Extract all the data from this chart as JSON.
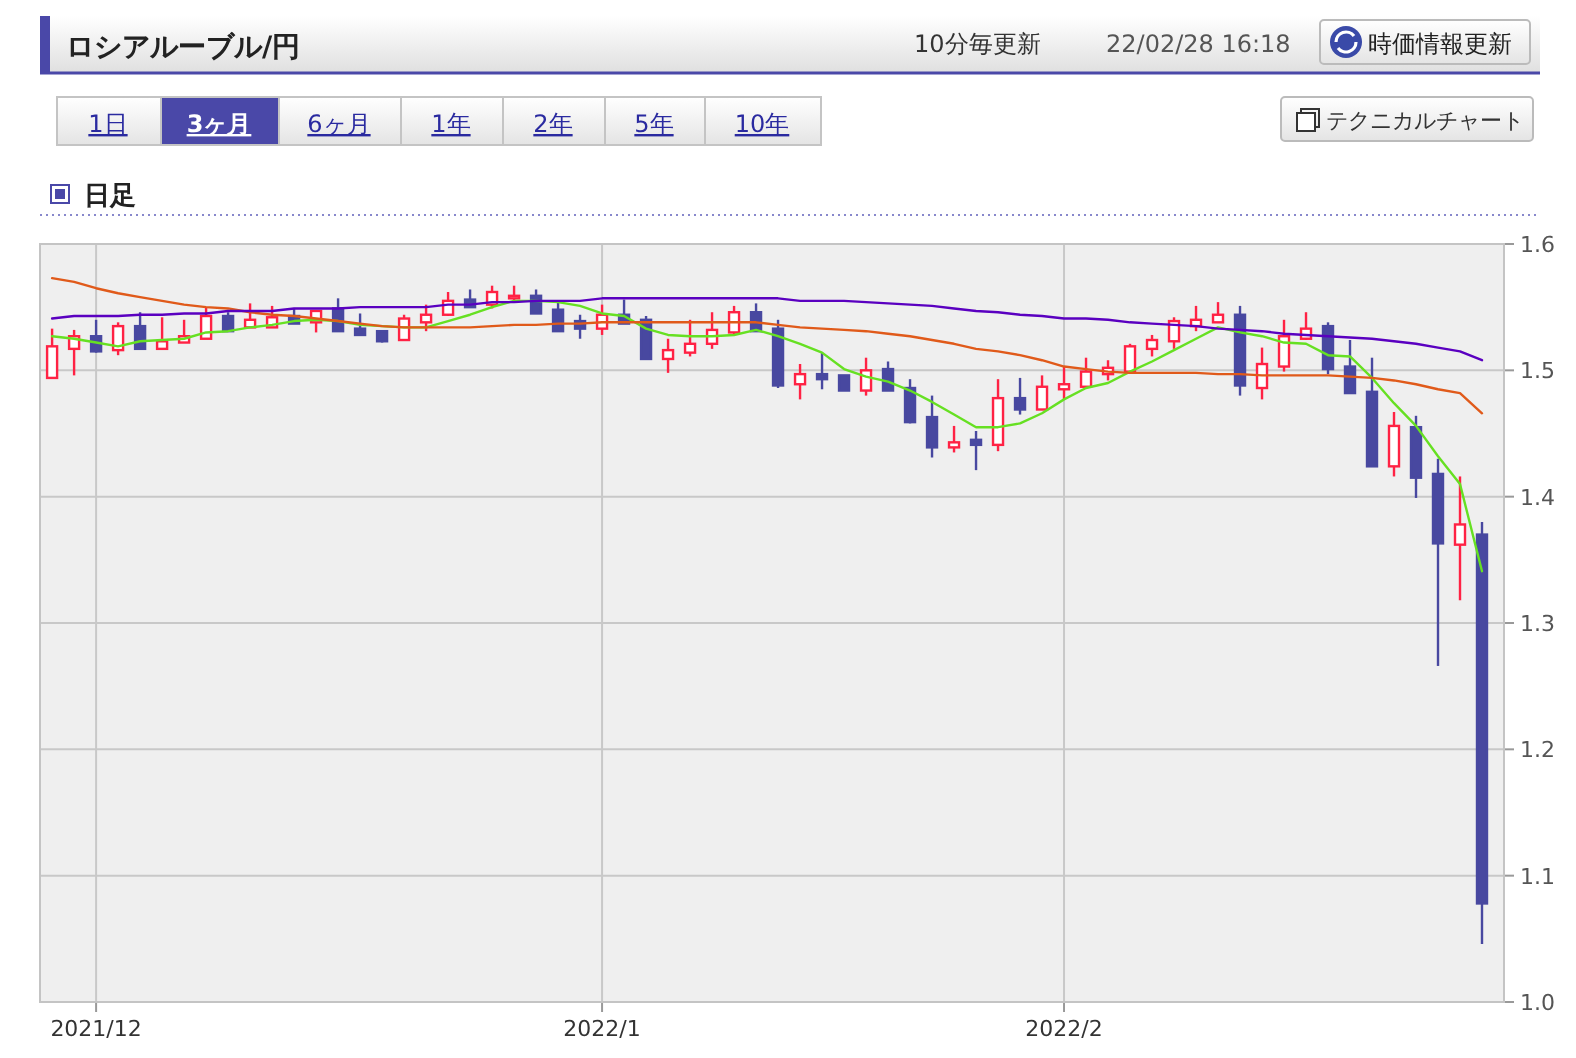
{
  "chart_data": {
    "type": "candlestick",
    "title": "ロシアルーブル/円",
    "subtitle": "日足",
    "annotations": [
      "10分毎更新",
      "22/02/28 16:18",
      "時価情報更新",
      "1日",
      "3ヶ月",
      "6ヶ月",
      "1年",
      "2年",
      "5年",
      "10年",
      "テクニカルチャート"
    ],
    "categories": [
      null,
      null,
      "2021/12",
      null,
      null,
      null,
      null,
      null,
      null,
      null,
      null,
      null,
      null,
      null,
      null,
      null,
      null,
      null,
      null,
      null,
      null,
      null,
      null,
      null,
      null,
      "2022/1",
      null,
      null,
      null,
      null,
      null,
      null,
      null,
      null,
      null,
      null,
      null,
      null,
      null,
      null,
      null,
      null,
      null,
      null,
      null,
      null,
      "2022/2",
      null,
      null,
      null,
      null,
      null,
      null,
      null,
      null,
      null,
      null,
      null,
      null,
      null,
      null,
      null,
      null,
      null,
      null,
      null
    ],
    "ohlc": [
      [
        1.494,
        1.533,
        1.494,
        1.519
      ],
      [
        1.517,
        1.532,
        1.496,
        1.527
      ],
      [
        1.527,
        1.54,
        1.514,
        1.515
      ],
      [
        1.516,
        1.538,
        1.512,
        1.535
      ],
      [
        1.535,
        1.546,
        1.517,
        1.517
      ],
      [
        1.517,
        1.542,
        1.517,
        1.523
      ],
      [
        1.522,
        1.54,
        1.522,
        1.527
      ],
      [
        1.525,
        1.55,
        1.525,
        1.543
      ],
      [
        1.543,
        1.546,
        1.531,
        1.531
      ],
      [
        1.534,
        1.553,
        1.534,
        1.54
      ],
      [
        1.534,
        1.551,
        1.534,
        1.542
      ],
      [
        1.543,
        1.549,
        1.537,
        1.537
      ],
      [
        1.538,
        1.547,
        1.53,
        1.547
      ],
      [
        1.549,
        1.557,
        1.531,
        1.531
      ],
      [
        1.533,
        1.545,
        1.528,
        1.528
      ],
      [
        1.531,
        1.531,
        1.522,
        1.523
      ],
      [
        1.524,
        1.544,
        1.524,
        1.541
      ],
      [
        1.538,
        1.552,
        1.531,
        1.544
      ],
      [
        1.544,
        1.562,
        1.543,
        1.555
      ],
      [
        1.556,
        1.564,
        1.55,
        1.55
      ],
      [
        1.552,
        1.567,
        1.549,
        1.562
      ],
      [
        1.557,
        1.567,
        1.555,
        1.559
      ],
      [
        1.559,
        1.564,
        1.545,
        1.545
      ],
      [
        1.548,
        1.555,
        1.531,
        1.531
      ],
      [
        1.539,
        1.544,
        1.525,
        1.533
      ],
      [
        1.533,
        1.552,
        1.528,
        1.544
      ],
      [
        1.544,
        1.556,
        1.537,
        1.537
      ],
      [
        1.54,
        1.543,
        1.509,
        1.509
      ],
      [
        1.509,
        1.525,
        1.498,
        1.516
      ],
      [
        1.514,
        1.54,
        1.511,
        1.521
      ],
      [
        1.521,
        1.546,
        1.517,
        1.532
      ],
      [
        1.53,
        1.551,
        1.528,
        1.546
      ],
      [
        1.546,
        1.553,
        1.531,
        1.531
      ],
      [
        1.533,
        1.54,
        1.486,
        1.488
      ],
      [
        1.489,
        1.505,
        1.477,
        1.497
      ],
      [
        1.497,
        1.514,
        1.485,
        1.493
      ],
      [
        1.496,
        1.496,
        1.484,
        1.484
      ],
      [
        1.484,
        1.51,
        1.48,
        1.5
      ],
      [
        1.501,
        1.507,
        1.484,
        1.484
      ],
      [
        1.486,
        1.493,
        1.458,
        1.459
      ],
      [
        1.463,
        1.48,
        1.431,
        1.439
      ],
      [
        1.439,
        1.456,
        1.435,
        1.443
      ],
      [
        1.445,
        1.452,
        1.421,
        1.441
      ],
      [
        1.441,
        1.493,
        1.436,
        1.478
      ],
      [
        1.478,
        1.494,
        1.465,
        1.469
      ],
      [
        1.469,
        1.496,
        1.469,
        1.487
      ],
      [
        1.485,
        1.503,
        1.477,
        1.489
      ],
      [
        1.487,
        1.51,
        1.487,
        1.499
      ],
      [
        1.497,
        1.508,
        1.492,
        1.502
      ],
      [
        1.499,
        1.521,
        1.499,
        1.519
      ],
      [
        1.517,
        1.528,
        1.511,
        1.524
      ],
      [
        1.523,
        1.542,
        1.517,
        1.539
      ],
      [
        1.535,
        1.551,
        1.531,
        1.54
      ],
      [
        1.538,
        1.554,
        1.538,
        1.544
      ],
      [
        1.544,
        1.551,
        1.48,
        1.488
      ],
      [
        1.486,
        1.518,
        1.477,
        1.505
      ],
      [
        1.503,
        1.54,
        1.499,
        1.527
      ],
      [
        1.525,
        1.546,
        1.524,
        1.533
      ],
      [
        1.535,
        1.538,
        1.497,
        1.501
      ],
      [
        1.503,
        1.524,
        1.482,
        1.482
      ],
      [
        1.483,
        1.51,
        1.424,
        1.424
      ],
      [
        1.424,
        1.467,
        1.416,
        1.456
      ],
      [
        1.455,
        1.464,
        1.399,
        1.415
      ],
      [
        1.418,
        1.43,
        1.266,
        1.363
      ],
      [
        1.362,
        1.416,
        1.318,
        1.378
      ],
      [
        1.37,
        1.38,
        1.046,
        1.078
      ]
    ],
    "series": [
      {
        "type": "line",
        "color": "#66e022",
        "values": [
          1.527,
          1.525,
          1.522,
          1.519,
          1.523,
          1.524,
          1.525,
          1.53,
          1.531,
          1.534,
          1.536,
          1.539,
          1.54,
          1.539,
          1.536,
          1.535,
          1.534,
          1.534,
          1.539,
          1.544,
          1.55,
          1.555,
          1.555,
          1.554,
          1.551,
          1.545,
          1.543,
          1.533,
          1.528,
          1.527,
          1.527,
          1.528,
          1.532,
          1.527,
          1.521,
          1.514,
          1.501,
          1.495,
          1.491,
          1.484,
          1.475,
          1.465,
          1.455,
          1.455,
          1.458,
          1.466,
          1.477,
          1.486,
          1.49,
          1.499,
          1.507,
          1.516,
          1.525,
          1.534,
          1.53,
          1.527,
          1.522,
          1.521,
          1.512,
          1.511,
          1.494,
          1.474,
          1.456,
          1.432,
          1.41,
          1.341
        ]
      },
      {
        "type": "line",
        "color": "#e05a1a",
        "values": [
          1.573,
          1.57,
          1.565,
          1.561,
          1.558,
          1.555,
          1.552,
          1.55,
          1.549,
          1.546,
          1.544,
          1.543,
          1.541,
          1.539,
          1.537,
          1.535,
          1.534,
          1.534,
          1.534,
          1.534,
          1.535,
          1.536,
          1.536,
          1.537,
          1.537,
          1.538,
          1.538,
          1.538,
          1.538,
          1.538,
          1.538,
          1.538,
          1.538,
          1.536,
          1.534,
          1.533,
          1.532,
          1.531,
          1.529,
          1.527,
          1.524,
          1.521,
          1.517,
          1.515,
          1.512,
          1.508,
          1.503,
          1.501,
          1.499,
          1.498,
          1.498,
          1.498,
          1.498,
          1.497,
          1.497,
          1.496,
          1.496,
          1.496,
          1.496,
          1.495,
          1.494,
          1.492,
          1.489,
          1.485,
          1.482,
          1.466
        ]
      },
      {
        "type": "line",
        "color": "#5a00c0",
        "values": [
          1.541,
          1.543,
          1.543,
          1.543,
          1.544,
          1.544,
          1.545,
          1.545,
          1.547,
          1.547,
          1.547,
          1.549,
          1.549,
          1.549,
          1.55,
          1.55,
          1.55,
          1.55,
          1.552,
          1.552,
          1.554,
          1.554,
          1.555,
          1.555,
          1.555,
          1.557,
          1.557,
          1.557,
          1.557,
          1.557,
          1.557,
          1.557,
          1.557,
          1.557,
          1.555,
          1.555,
          1.555,
          1.554,
          1.553,
          1.552,
          1.551,
          1.549,
          1.547,
          1.546,
          1.544,
          1.543,
          1.541,
          1.541,
          1.54,
          1.538,
          1.537,
          1.536,
          1.535,
          1.533,
          1.532,
          1.531,
          1.529,
          1.528,
          1.527,
          1.526,
          1.525,
          1.523,
          1.521,
          1.518,
          1.515,
          1.508
        ]
      }
    ],
    "ylim": [
      1.0,
      1.6
    ],
    "yticks": [
      {
        "value": 1.0,
        "label": "1.0"
      },
      1.1,
      1.2,
      1.3,
      1.4,
      1.5,
      1.6
    ],
    "grid": true
  }
}
